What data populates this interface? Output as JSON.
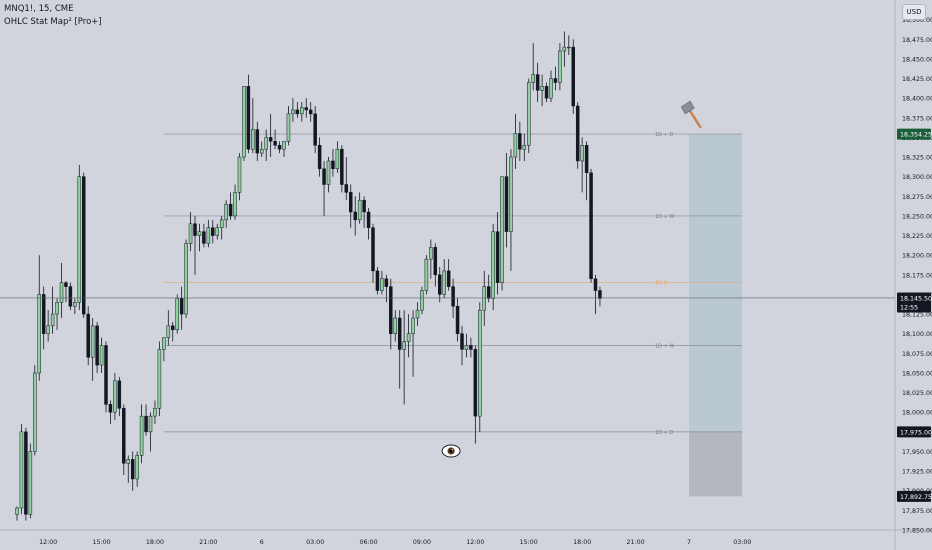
{
  "header": {
    "symbol_line": "MNQ1!, 15, CME",
    "indicator_line": "OHLC Stat Map² [Pro+]"
  },
  "currency": "USD",
  "colors": {
    "background": "#d1d4dc",
    "up_body": "#8fd19e",
    "down_body": "#131722",
    "last_price_badge": "#131722",
    "highlight_badge": "#1b5e3b",
    "projection_box": "#b6c7cf",
    "projection_box_lower": "#b0b4bc",
    "level_line": "#787b86",
    "mid_level_line": "#e5a25d"
  },
  "icons": [
    "hammer-icon",
    "eye-icon"
  ],
  "chart_data": {
    "type": "candlestick",
    "title": "",
    "xlabel": "",
    "ylabel": "",
    "ylim": [
      17850,
      18525
    ],
    "y_ticks": [
      17850,
      17875,
      17900,
      17925,
      17950,
      17975,
      18000,
      18025,
      18050,
      18075,
      18100,
      18125,
      18150,
      18175,
      18200,
      18225,
      18250,
      18275,
      18300,
      18325,
      18350,
      18375,
      18400,
      18425,
      18450,
      18475,
      18500
    ],
    "x_ticks": [
      {
        "label": "12:00",
        "bar": 7
      },
      {
        "label": "15:00",
        "bar": 19
      },
      {
        "label": "18:00",
        "bar": 31
      },
      {
        "label": "21:00",
        "bar": 43
      },
      {
        "label": "6",
        "bar": 55
      },
      {
        "label": "03:00",
        "bar": 67
      },
      {
        "label": "06:00",
        "bar": 79
      },
      {
        "label": "09:00",
        "bar": 91
      },
      {
        "label": "12:00",
        "bar": 103
      },
      {
        "label": "15:00",
        "bar": 115
      },
      {
        "label": "18:00",
        "bar": 127
      },
      {
        "label": "21:00",
        "bar": 139
      },
      {
        "label": "7",
        "bar": 151
      },
      {
        "label": "03:00",
        "bar": 163
      }
    ],
    "candles": [
      {
        "o": 17870,
        "h": 17880,
        "l": 17862,
        "c": 17878
      },
      {
        "o": 17878,
        "h": 17985,
        "l": 17870,
        "c": 17975
      },
      {
        "o": 17975,
        "h": 17980,
        "l": 17862,
        "c": 17870
      },
      {
        "o": 17870,
        "h": 17960,
        "l": 17865,
        "c": 17950
      },
      {
        "o": 17950,
        "h": 18060,
        "l": 17945,
        "c": 18050
      },
      {
        "o": 18050,
        "h": 18200,
        "l": 18040,
        "c": 18150
      },
      {
        "o": 18150,
        "h": 18160,
        "l": 18080,
        "c": 18100
      },
      {
        "o": 18100,
        "h": 18130,
        "l": 18090,
        "c": 18110
      },
      {
        "o": 18110,
        "h": 18160,
        "l": 18100,
        "c": 18125
      },
      {
        "o": 18125,
        "h": 18145,
        "l": 18105,
        "c": 18140
      },
      {
        "o": 18140,
        "h": 18190,
        "l": 18120,
        "c": 18165
      },
      {
        "o": 18165,
        "h": 18167,
        "l": 18140,
        "c": 18160
      },
      {
        "o": 18160,
        "h": 18165,
        "l": 18130,
        "c": 18135
      },
      {
        "o": 18135,
        "h": 18145,
        "l": 18125,
        "c": 18140
      },
      {
        "o": 18140,
        "h": 18315,
        "l": 18130,
        "c": 18300
      },
      {
        "o": 18300,
        "h": 18305,
        "l": 18120,
        "c": 18125
      },
      {
        "o": 18125,
        "h": 18135,
        "l": 18060,
        "c": 18070
      },
      {
        "o": 18070,
        "h": 18120,
        "l": 18040,
        "c": 18110
      },
      {
        "o": 18110,
        "h": 18115,
        "l": 18050,
        "c": 18060
      },
      {
        "o": 18060,
        "h": 18095,
        "l": 18050,
        "c": 18085
      },
      {
        "o": 18085,
        "h": 18090,
        "l": 18000,
        "c": 18010
      },
      {
        "o": 18010,
        "h": 18015,
        "l": 17985,
        "c": 18000
      },
      {
        "o": 18000,
        "h": 18050,
        "l": 17990,
        "c": 18040
      },
      {
        "o": 18040,
        "h": 18045,
        "l": 17995,
        "c": 18005
      },
      {
        "o": 18005,
        "h": 18010,
        "l": 17920,
        "c": 17935
      },
      {
        "o": 17935,
        "h": 17945,
        "l": 17910,
        "c": 17940
      },
      {
        "o": 17940,
        "h": 17950,
        "l": 17900,
        "c": 17915
      },
      {
        "o": 17915,
        "h": 17950,
        "l": 17905,
        "c": 17945
      },
      {
        "o": 17945,
        "h": 18010,
        "l": 17935,
        "c": 17995
      },
      {
        "o": 17995,
        "h": 18010,
        "l": 17970,
        "c": 17975
      },
      {
        "o": 17975,
        "h": 18000,
        "l": 17950,
        "c": 17995
      },
      {
        "o": 17995,
        "h": 18015,
        "l": 17985,
        "c": 18005
      },
      {
        "o": 18005,
        "h": 18090,
        "l": 17995,
        "c": 18080
      },
      {
        "o": 18080,
        "h": 18095,
        "l": 18065,
        "c": 18095
      },
      {
        "o": 18095,
        "h": 18130,
        "l": 18085,
        "c": 18110
      },
      {
        "o": 18110,
        "h": 18115,
        "l": 18090,
        "c": 18105
      },
      {
        "o": 18105,
        "h": 18150,
        "l": 18100,
        "c": 18145
      },
      {
        "o": 18145,
        "h": 18160,
        "l": 18105,
        "c": 18125
      },
      {
        "o": 18125,
        "h": 18220,
        "l": 18120,
        "c": 18215
      },
      {
        "o": 18215,
        "h": 18255,
        "l": 18205,
        "c": 18240
      },
      {
        "o": 18240,
        "h": 18250,
        "l": 18175,
        "c": 18225
      },
      {
        "o": 18225,
        "h": 18240,
        "l": 18205,
        "c": 18230
      },
      {
        "o": 18230,
        "h": 18240,
        "l": 18210,
        "c": 18215
      },
      {
        "o": 18215,
        "h": 18245,
        "l": 18210,
        "c": 18235
      },
      {
        "o": 18235,
        "h": 18245,
        "l": 18215,
        "c": 18225
      },
      {
        "o": 18225,
        "h": 18240,
        "l": 18220,
        "c": 18235
      },
      {
        "o": 18235,
        "h": 18250,
        "l": 18220,
        "c": 18245
      },
      {
        "o": 18245,
        "h": 18270,
        "l": 18235,
        "c": 18265
      },
      {
        "o": 18265,
        "h": 18280,
        "l": 18245,
        "c": 18250
      },
      {
        "o": 18250,
        "h": 18290,
        "l": 18245,
        "c": 18280
      },
      {
        "o": 18280,
        "h": 18330,
        "l": 18270,
        "c": 18325
      },
      {
        "o": 18325,
        "h": 18415,
        "l": 18320,
        "c": 18415
      },
      {
        "o": 18415,
        "h": 18430,
        "l": 18330,
        "c": 18335
      },
      {
        "o": 18335,
        "h": 18400,
        "l": 18330,
        "c": 18360
      },
      {
        "o": 18360,
        "h": 18370,
        "l": 18320,
        "c": 18330
      },
      {
        "o": 18330,
        "h": 18345,
        "l": 18325,
        "c": 18335
      },
      {
        "o": 18335,
        "h": 18360,
        "l": 18320,
        "c": 18350
      },
      {
        "o": 18350,
        "h": 18380,
        "l": 18325,
        "c": 18345
      },
      {
        "o": 18345,
        "h": 18360,
        "l": 18335,
        "c": 18340
      },
      {
        "o": 18340,
        "h": 18345,
        "l": 18330,
        "c": 18335
      },
      {
        "o": 18335,
        "h": 18345,
        "l": 18325,
        "c": 18345
      },
      {
        "o": 18345,
        "h": 18390,
        "l": 18340,
        "c": 18380
      },
      {
        "o": 18380,
        "h": 18400,
        "l": 18370,
        "c": 18385
      },
      {
        "o": 18385,
        "h": 18395,
        "l": 18375,
        "c": 18380
      },
      {
        "o": 18380,
        "h": 18395,
        "l": 18370,
        "c": 18388
      },
      {
        "o": 18388,
        "h": 18400,
        "l": 18375,
        "c": 18385
      },
      {
        "o": 18385,
        "h": 18395,
        "l": 18370,
        "c": 18380
      },
      {
        "o": 18380,
        "h": 18390,
        "l": 18330,
        "c": 18340
      },
      {
        "o": 18340,
        "h": 18350,
        "l": 18300,
        "c": 18310
      },
      {
        "o": 18310,
        "h": 18320,
        "l": 18250,
        "c": 18290
      },
      {
        "o": 18290,
        "h": 18325,
        "l": 18280,
        "c": 18320
      },
      {
        "o": 18320,
        "h": 18335,
        "l": 18300,
        "c": 18310
      },
      {
        "o": 18310,
        "h": 18345,
        "l": 18305,
        "c": 18335
      },
      {
        "o": 18335,
        "h": 18340,
        "l": 18280,
        "c": 18290
      },
      {
        "o": 18290,
        "h": 18325,
        "l": 18270,
        "c": 18280
      },
      {
        "o": 18280,
        "h": 18290,
        "l": 18235,
        "c": 18255
      },
      {
        "o": 18255,
        "h": 18275,
        "l": 18225,
        "c": 18245
      },
      {
        "o": 18245,
        "h": 18280,
        "l": 18240,
        "c": 18270
      },
      {
        "o": 18270,
        "h": 18275,
        "l": 18235,
        "c": 18255
      },
      {
        "o": 18255,
        "h": 18260,
        "l": 18220,
        "c": 18235
      },
      {
        "o": 18235,
        "h": 18240,
        "l": 18165,
        "c": 18180
      },
      {
        "o": 18180,
        "h": 18185,
        "l": 18150,
        "c": 18155
      },
      {
        "o": 18155,
        "h": 18180,
        "l": 18150,
        "c": 18170
      },
      {
        "o": 18170,
        "h": 18175,
        "l": 18140,
        "c": 18160
      },
      {
        "o": 18160,
        "h": 18170,
        "l": 18080,
        "c": 18100
      },
      {
        "o": 18100,
        "h": 18130,
        "l": 18090,
        "c": 18120
      },
      {
        "o": 18120,
        "h": 18130,
        "l": 18030,
        "c": 18080
      },
      {
        "o": 18080,
        "h": 18130,
        "l": 18010,
        "c": 18090
      },
      {
        "o": 18090,
        "h": 18125,
        "l": 18070,
        "c": 18100
      },
      {
        "o": 18100,
        "h": 18130,
        "l": 18045,
        "c": 18120
      },
      {
        "o": 18120,
        "h": 18140,
        "l": 18110,
        "c": 18130
      },
      {
        "o": 18130,
        "h": 18160,
        "l": 18125,
        "c": 18155
      },
      {
        "o": 18155,
        "h": 18200,
        "l": 18150,
        "c": 18195
      },
      {
        "o": 18195,
        "h": 18220,
        "l": 18170,
        "c": 18210
      },
      {
        "o": 18210,
        "h": 18215,
        "l": 18160,
        "c": 18175
      },
      {
        "o": 18175,
        "h": 18185,
        "l": 18140,
        "c": 18150
      },
      {
        "o": 18150,
        "h": 18195,
        "l": 18145,
        "c": 18180
      },
      {
        "o": 18180,
        "h": 18195,
        "l": 18155,
        "c": 18160
      },
      {
        "o": 18160,
        "h": 18170,
        "l": 18120,
        "c": 18135
      },
      {
        "o": 18135,
        "h": 18145,
        "l": 18090,
        "c": 18100
      },
      {
        "o": 18100,
        "h": 18110,
        "l": 18060,
        "c": 18080
      },
      {
        "o": 18080,
        "h": 18100,
        "l": 18070,
        "c": 18085
      },
      {
        "o": 18085,
        "h": 18095,
        "l": 18070,
        "c": 18080
      },
      {
        "o": 18080,
        "h": 18085,
        "l": 17960,
        "c": 17995
      },
      {
        "o": 17995,
        "h": 18140,
        "l": 17975,
        "c": 18130
      },
      {
        "o": 18130,
        "h": 18180,
        "l": 18110,
        "c": 18160
      },
      {
        "o": 18160,
        "h": 18175,
        "l": 18140,
        "c": 18145
      },
      {
        "o": 18145,
        "h": 18240,
        "l": 18130,
        "c": 18230
      },
      {
        "o": 18230,
        "h": 18255,
        "l": 18150,
        "c": 18165
      },
      {
        "o": 18165,
        "h": 18300,
        "l": 18155,
        "c": 18300
      },
      {
        "o": 18300,
        "h": 18330,
        "l": 18210,
        "c": 18230
      },
      {
        "o": 18230,
        "h": 18335,
        "l": 18180,
        "c": 18325
      },
      {
        "o": 18325,
        "h": 18380,
        "l": 18310,
        "c": 18355
      },
      {
        "o": 18355,
        "h": 18370,
        "l": 18320,
        "c": 18335
      },
      {
        "o": 18335,
        "h": 18355,
        "l": 18320,
        "c": 18340
      },
      {
        "o": 18340,
        "h": 18425,
        "l": 18330,
        "c": 18420
      },
      {
        "o": 18420,
        "h": 18470,
        "l": 18410,
        "c": 18430
      },
      {
        "o": 18430,
        "h": 18445,
        "l": 18395,
        "c": 18410
      },
      {
        "o": 18410,
        "h": 18430,
        "l": 18390,
        "c": 18415
      },
      {
        "o": 18415,
        "h": 18420,
        "l": 18395,
        "c": 18400
      },
      {
        "o": 18400,
        "h": 18435,
        "l": 18395,
        "c": 18425
      },
      {
        "o": 18425,
        "h": 18440,
        "l": 18410,
        "c": 18420
      },
      {
        "o": 18420,
        "h": 18470,
        "l": 18410,
        "c": 18460
      },
      {
        "o": 18460,
        "h": 18485,
        "l": 18440,
        "c": 18465
      },
      {
        "o": 18465,
        "h": 18480,
        "l": 18455,
        "c": 18465
      },
      {
        "o": 18465,
        "h": 18475,
        "l": 18380,
        "c": 18390
      },
      {
        "o": 18390,
        "h": 18395,
        "l": 18310,
        "c": 18320
      },
      {
        "o": 18320,
        "h": 18350,
        "l": 18280,
        "c": 18340
      },
      {
        "o": 18340,
        "h": 18345,
        "l": 18270,
        "c": 18305
      },
      {
        "o": 18305,
        "h": 18310,
        "l": 18165,
        "c": 18170
      },
      {
        "o": 18170,
        "h": 18175,
        "l": 18125,
        "c": 18155
      },
      {
        "o": 18155,
        "h": 18160,
        "l": 18135,
        "c": 18145
      }
    ],
    "levels": [
      {
        "label": "1D + D",
        "value": 18354.25,
        "color": "#787b86"
      },
      {
        "label": "1D + W",
        "value": 18250,
        "color": "#787b86"
      },
      {
        "label": "1D O",
        "value": 18165,
        "color": "#e5a25d"
      },
      {
        "label": "1D + W",
        "value": 18085,
        "color": "#787b86"
      },
      {
        "label": "1D + D",
        "value": 17975,
        "color": "#787b86"
      }
    ],
    "projection": {
      "top": 18354.25,
      "mid": 17975,
      "bottom": 17892.75
    },
    "price_badges": [
      {
        "value": 18354.25,
        "label": "18,354.25",
        "color": "#1b5e3b"
      },
      {
        "value": 18145.5,
        "label": "18,145.50",
        "sub": "12:55",
        "color": "#131722"
      },
      {
        "value": 17975,
        "label": "17,975.00",
        "color": "#131722"
      },
      {
        "value": 17892.75,
        "label": "17,892.75",
        "color": "#131722"
      }
    ],
    "current_price": 18145.5,
    "hammer_marker_bar": 136,
    "eye_marker_bar": 98
  }
}
